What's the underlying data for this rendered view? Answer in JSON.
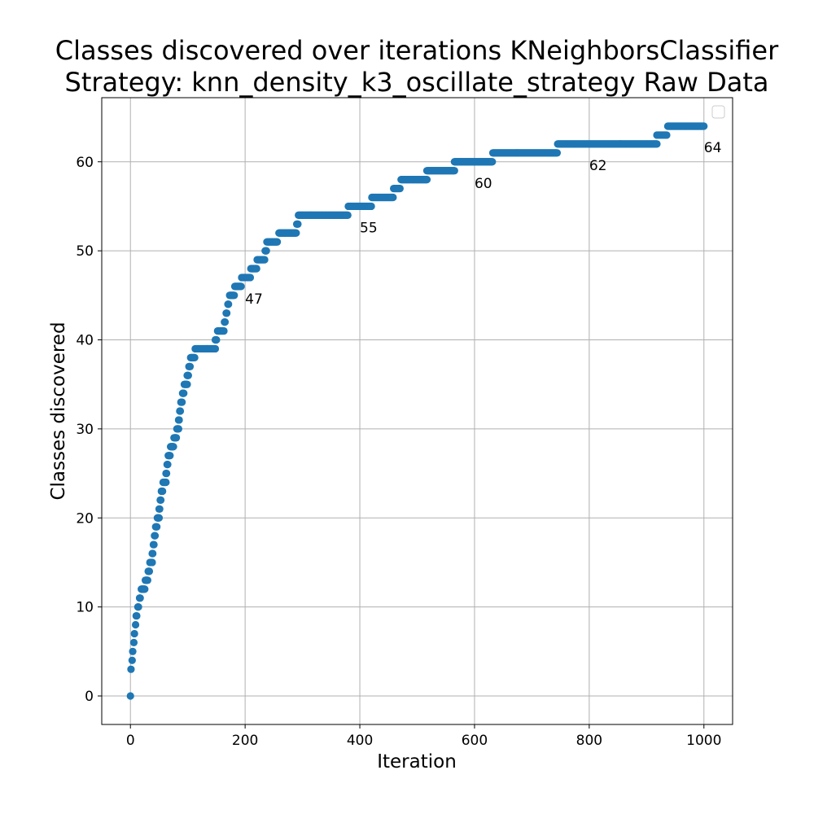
{
  "chart_data": {
    "type": "scatter",
    "title": [
      "Classes discovered over iterations KNeighborsClassifier",
      "Strategy: knn_density_k3_oscillate_strategy Raw Data"
    ],
    "xlabel": "Iteration",
    "ylabel": "Classes discovered",
    "xlim": [
      -50,
      1050
    ],
    "ylim": [
      -3.2,
      67.2
    ],
    "xticks": [
      0,
      200,
      400,
      600,
      800,
      1000
    ],
    "yticks": [
      0,
      10,
      20,
      30,
      40,
      50,
      60
    ],
    "grid": true,
    "legend": "top-right, empty",
    "marker_color": "#1f77b4",
    "segments": [
      [
        0,
        0,
        0
      ],
      [
        1,
        1,
        3
      ],
      [
        3,
        3,
        4
      ],
      [
        4,
        4,
        5
      ],
      [
        6,
        6,
        6
      ],
      [
        7,
        7,
        7
      ],
      [
        9,
        9,
        8
      ],
      [
        10,
        11,
        9
      ],
      [
        13,
        14,
        10
      ],
      [
        16,
        17,
        11
      ],
      [
        19,
        25,
        12
      ],
      [
        26,
        30,
        13
      ],
      [
        31,
        33,
        14
      ],
      [
        34,
        38,
        15
      ],
      [
        38,
        39,
        16
      ],
      [
        40,
        41,
        17
      ],
      [
        42,
        43,
        18
      ],
      [
        44,
        46,
        19
      ],
      [
        47,
        50,
        20
      ],
      [
        50,
        51,
        21
      ],
      [
        52,
        53,
        22
      ],
      [
        54,
        56,
        23
      ],
      [
        57,
        62,
        24
      ],
      [
        62,
        63,
        25
      ],
      [
        64,
        65,
        26
      ],
      [
        66,
        69,
        27
      ],
      [
        70,
        75,
        28
      ],
      [
        76,
        80,
        29
      ],
      [
        81,
        84,
        30
      ],
      [
        84,
        85,
        31
      ],
      [
        86,
        87,
        32
      ],
      [
        88,
        90,
        33
      ],
      [
        91,
        93,
        34
      ],
      [
        94,
        99,
        35
      ],
      [
        99,
        101,
        36
      ],
      [
        102,
        104,
        37
      ],
      [
        105,
        112,
        38
      ],
      [
        113,
        148,
        39
      ],
      [
        148,
        150,
        40
      ],
      [
        152,
        163,
        41
      ],
      [
        164,
        165,
        42
      ],
      [
        167,
        168,
        43
      ],
      [
        170,
        171,
        44
      ],
      [
        173,
        181,
        45
      ],
      [
        182,
        193,
        46
      ],
      [
        194,
        209,
        47
      ],
      [
        210,
        220,
        48
      ],
      [
        221,
        234,
        49
      ],
      [
        235,
        237,
        50
      ],
      [
        238,
        256,
        51
      ],
      [
        259,
        289,
        52
      ],
      [
        290,
        292,
        53
      ],
      [
        293,
        379,
        54
      ],
      [
        380,
        420,
        55
      ],
      [
        421,
        458,
        56
      ],
      [
        459,
        470,
        57
      ],
      [
        472,
        517,
        58
      ],
      [
        517,
        565,
        59
      ],
      [
        565,
        631,
        60
      ],
      [
        632,
        744,
        61
      ],
      [
        745,
        918,
        62
      ],
      [
        918,
        935,
        63
      ],
      [
        937,
        1000,
        64
      ]
    ],
    "annotations": [
      {
        "x": 200,
        "y": 47,
        "text": "47"
      },
      {
        "x": 400,
        "y": 55,
        "text": "55"
      },
      {
        "x": 600,
        "y": 60,
        "text": "60"
      },
      {
        "x": 800,
        "y": 62,
        "text": "62"
      },
      {
        "x": 1000,
        "y": 64,
        "text": "64"
      }
    ]
  }
}
